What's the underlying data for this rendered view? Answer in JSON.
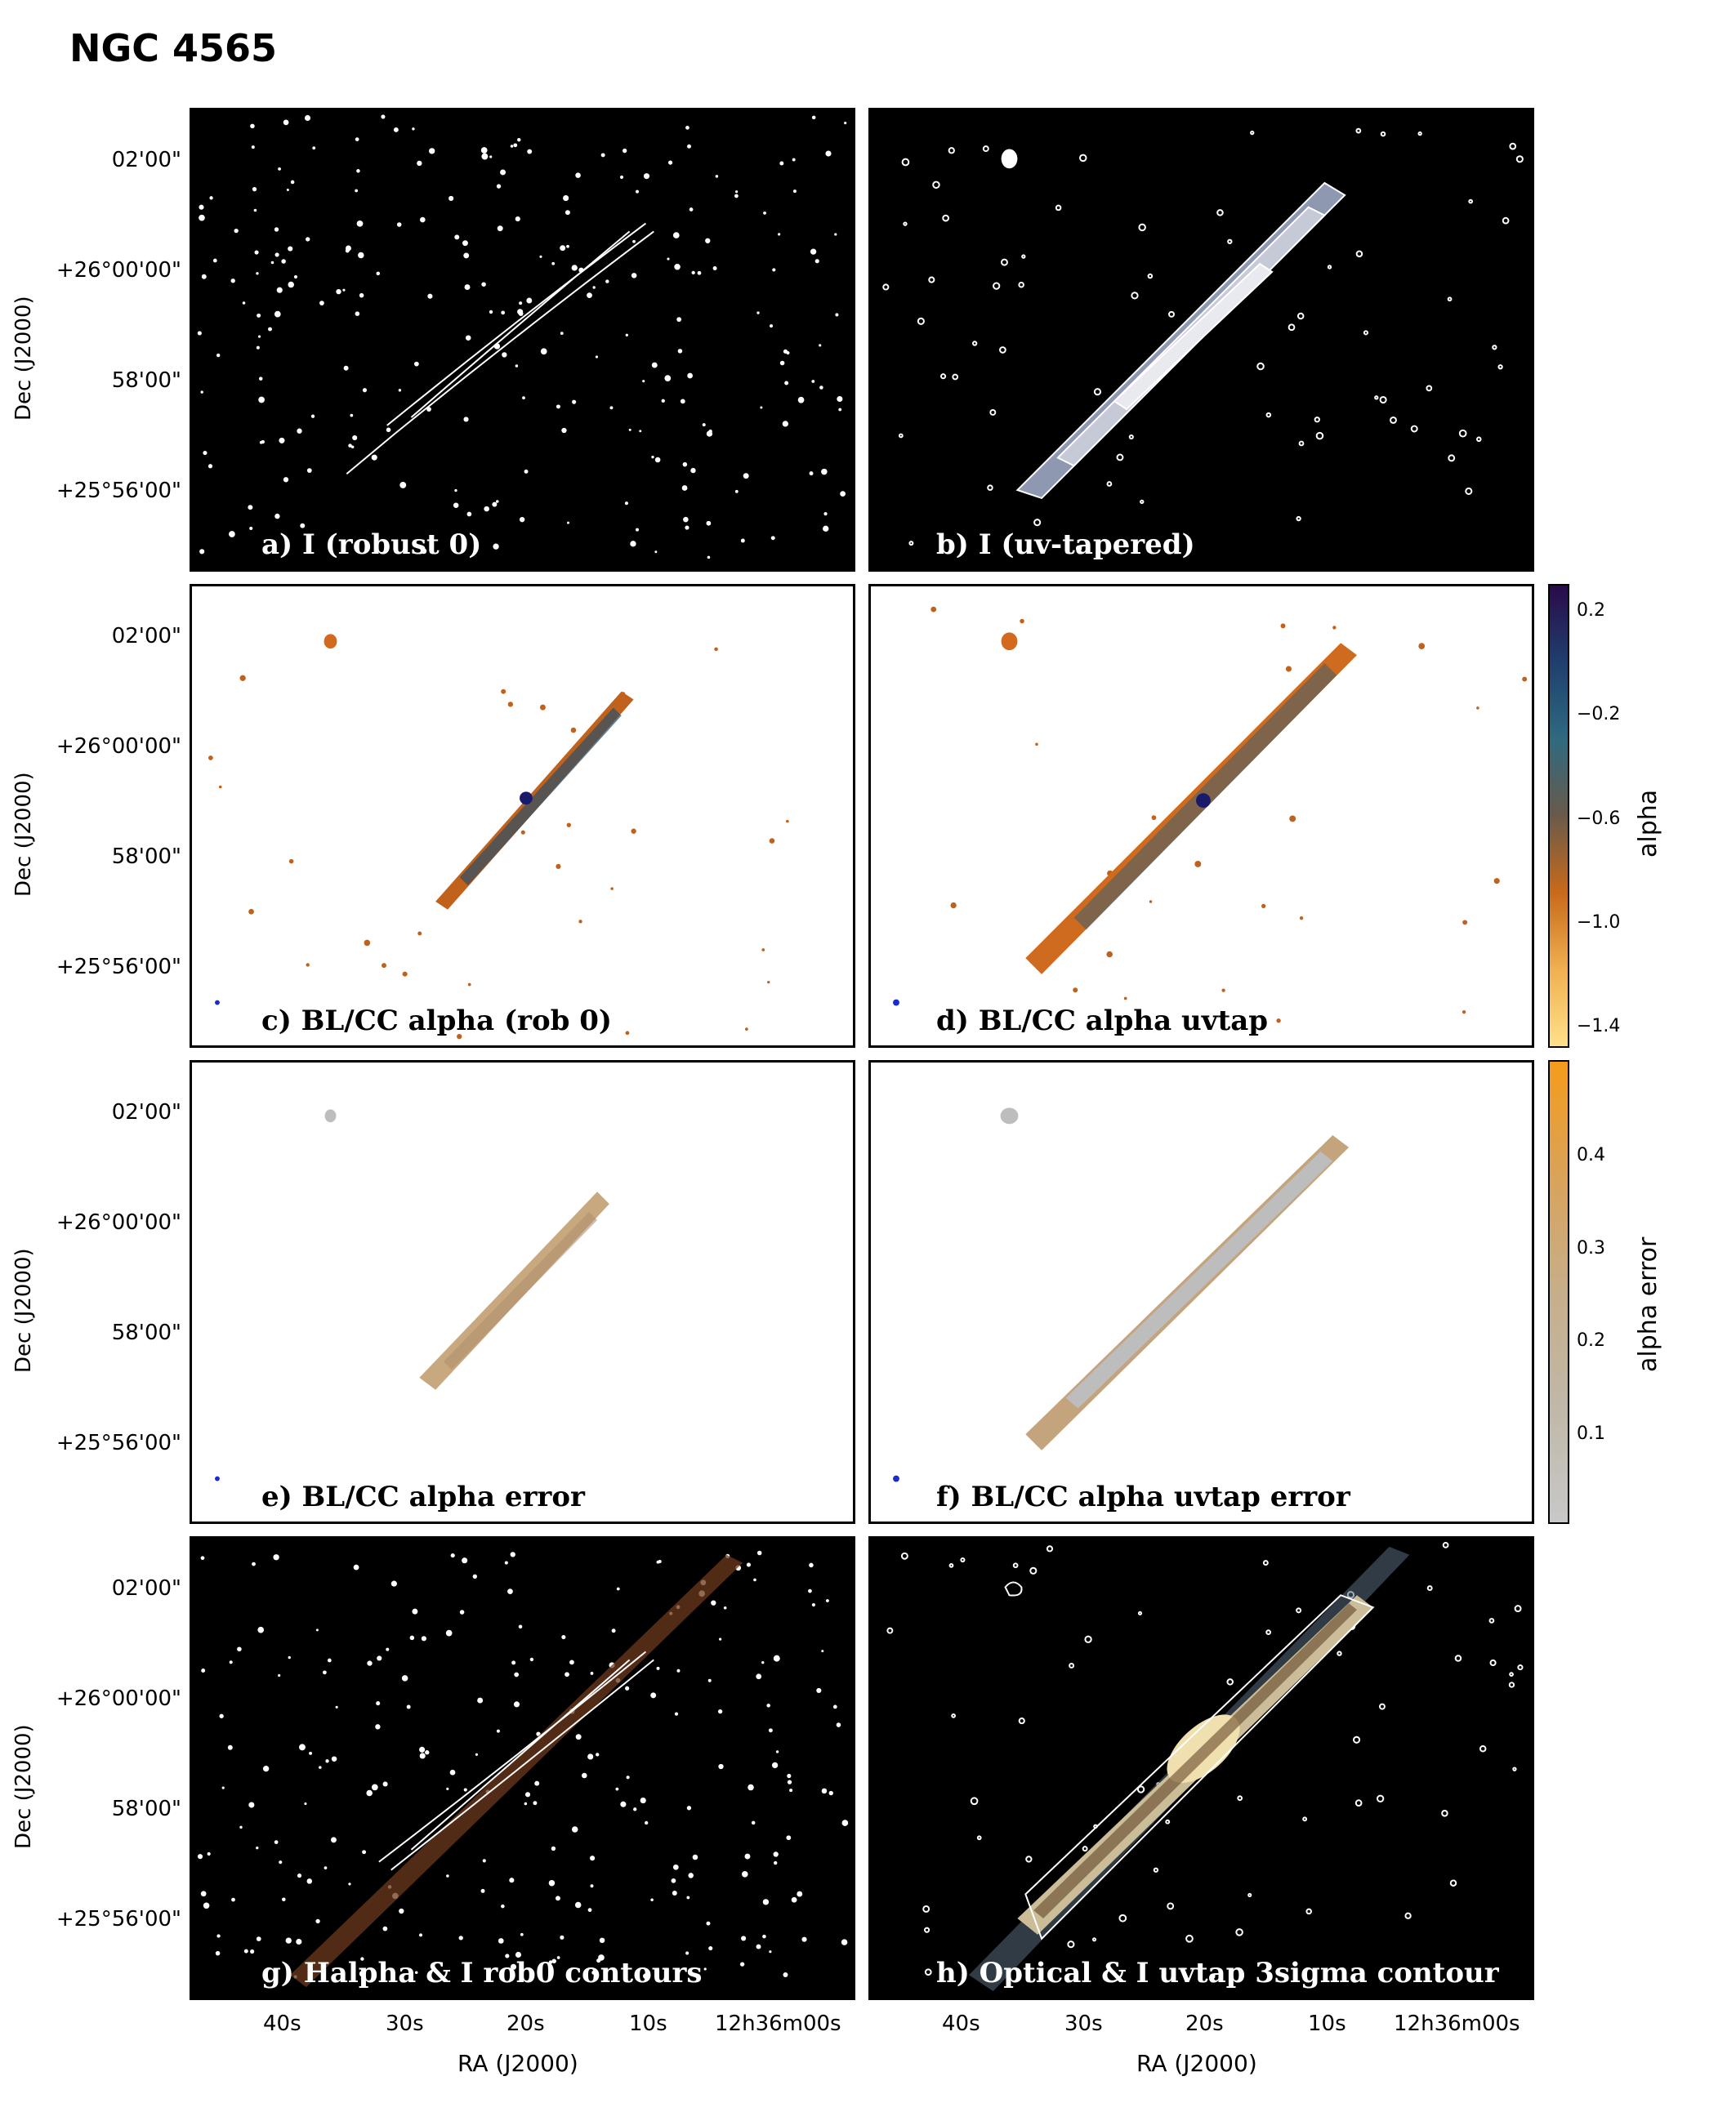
{
  "title": "NGC 4565",
  "dec_axis_label": "Dec (J2000)",
  "ra_axis_label": "RA (J2000)",
  "dec_ticks": [
    "02'00\"",
    "+26°00'00\"",
    "58'00\"",
    "+25°56'00\""
  ],
  "ra_ticks": [
    "40s",
    "30s",
    "20s",
    "10s",
    "12h36m00s"
  ],
  "panels": [
    {
      "label": "a) I (robust 0)",
      "style": "dark-bg"
    },
    {
      "label": "b) I (uv-tapered)",
      "style": "dark-bg"
    },
    {
      "label": "c) BL/CC alpha (rob 0)",
      "style": "light-bg"
    },
    {
      "label": "d) BL/CC alpha uvtap",
      "style": "light-bg"
    },
    {
      "label": "e)  BL/CC alpha error",
      "style": "light-bg"
    },
    {
      "label": "f) BL/CC alpha uvtap error",
      "style": "light-bg"
    },
    {
      "label": "g) Halpha & I rob0 contours",
      "style": "dark-bg"
    },
    {
      "label": "h) Optical & I uvtap 3sigma contour",
      "style": "dark-bg"
    }
  ],
  "colorbar_alpha": {
    "label": "alpha",
    "ticks": [
      "0.2",
      "−0.2",
      "−0.6",
      "−1.0",
      "−1.4"
    ],
    "colors": [
      "#2a0a4a",
      "#1f3f6e",
      "#2e6a80",
      "#6a5a4a",
      "#c86a1a",
      "#f0b050",
      "#ffe08a"
    ]
  },
  "colorbar_error": {
    "label": "alpha error",
    "ticks": [
      "0.4",
      "0.3",
      "0.2",
      "0.1"
    ],
    "colors": [
      "#f59b1a",
      "#d9a35a",
      "#c7ae8a",
      "#c0b8a8",
      "#c8c8c8"
    ]
  }
}
